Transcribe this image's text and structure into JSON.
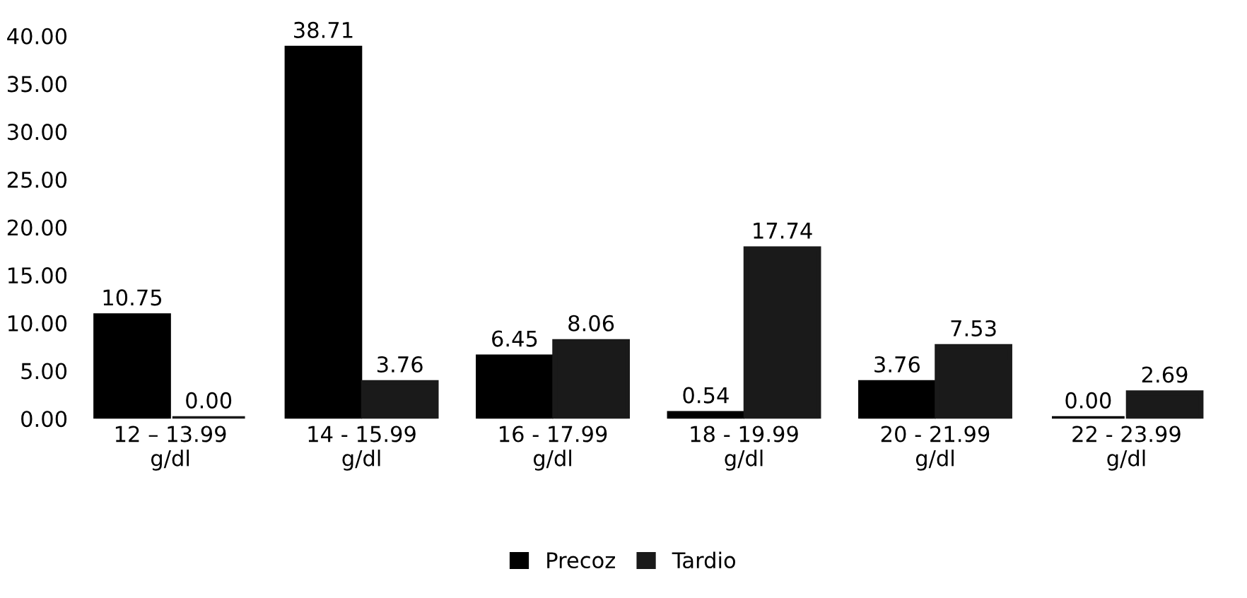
{
  "chart_data": {
    "type": "bar",
    "categories": [
      "12 – 13.99\ng/dl",
      "14 - 15.99\ng/dl",
      "16 - 17.99\ng/dl",
      "18 - 19.99\ng/dl",
      "20 - 21.99\ng/dl",
      "22 - 23.99\ng/dl"
    ],
    "series": [
      {
        "name": "Precoz",
        "color": "#000000",
        "values": [
          10.75,
          38.71,
          6.45,
          0.54,
          3.76,
          0.0
        ],
        "value_labels": [
          "10.75",
          "38.71",
          "6.45",
          "0.54",
          "3.76",
          "0.00"
        ]
      },
      {
        "name": "Tardio",
        "color": "#1a1a1a",
        "values": [
          0.0,
          3.76,
          8.06,
          17.74,
          7.53,
          2.69
        ],
        "value_labels": [
          "0.00",
          "3.76",
          "8.06",
          "17.74",
          "7.53",
          "2.69"
        ]
      }
    ],
    "ylim": [
      0,
      40
    ],
    "yticks": [
      {
        "value": 0,
        "label": "0.00"
      },
      {
        "value": 5,
        "label": "5.00"
      },
      {
        "value": 10,
        "label": "10.00"
      },
      {
        "value": 15,
        "label": "15.00"
      },
      {
        "value": 20,
        "label": "20.00"
      },
      {
        "value": 25,
        "label": "25.00"
      },
      {
        "value": 30,
        "label": "30.00"
      },
      {
        "value": 35,
        "label": "35.00"
      },
      {
        "value": 40,
        "label": "40.00"
      }
    ],
    "grid": false,
    "legend": "bottom"
  }
}
